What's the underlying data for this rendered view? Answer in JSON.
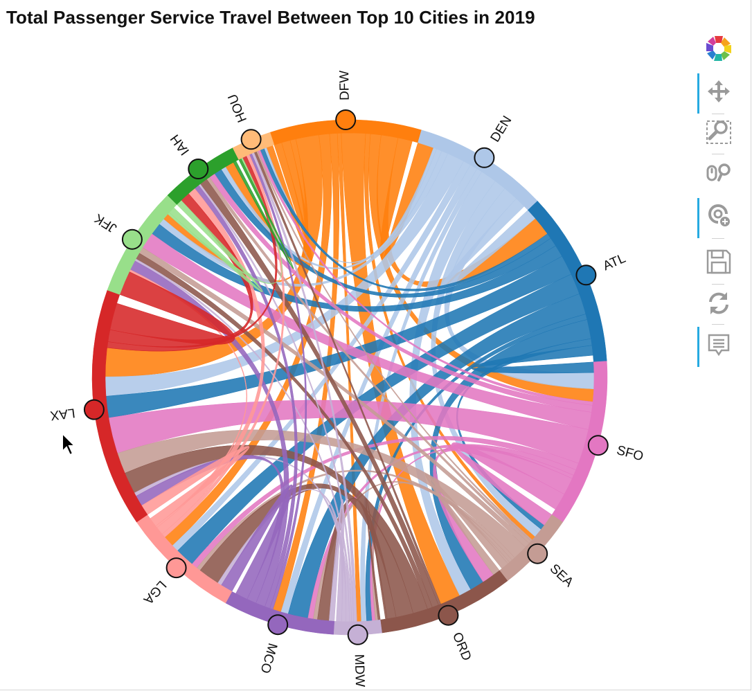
{
  "chart_data": {
    "type": "chord",
    "title": "Total Passenger Service Travel Between Top 10 Cities in 2019",
    "nodes": [
      {
        "name": "DFW",
        "color": "#ff7f0e",
        "share": 0.095
      },
      {
        "name": "DEN",
        "color": "#aec7e8",
        "share": 0.085
      },
      {
        "name": "ATL",
        "color": "#1f77b4",
        "share": 0.11
      },
      {
        "name": "SFO",
        "color": "#e377c2",
        "share": 0.105
      },
      {
        "name": "SEA",
        "color": "#c49c94",
        "share": 0.05
      },
      {
        "name": "ORD",
        "color": "#8c564b",
        "share": 0.085
      },
      {
        "name": "MDW",
        "color": "#c5b0d5",
        "share": 0.03
      },
      {
        "name": "MCO",
        "color": "#9467bd",
        "share": 0.07
      },
      {
        "name": "LGA",
        "color": "#ff9896",
        "share": 0.075
      },
      {
        "name": "LAX",
        "color": "#d62728",
        "share": 0.15
      },
      {
        "name": "JFK",
        "color": "#98df8a",
        "share": 0.07
      },
      {
        "name": "IAH",
        "color": "#2ca02c",
        "share": 0.05
      },
      {
        "name": "HOU",
        "color": "#ffbb78",
        "share": 0.025
      }
    ],
    "links": [
      [
        "DFW",
        "DEN",
        3.0
      ],
      [
        "DFW",
        "ATL",
        3.5
      ],
      [
        "DFW",
        "SFO",
        2.2
      ],
      [
        "DFW",
        "SEA",
        1.0
      ],
      [
        "DFW",
        "ORD",
        5.0
      ],
      [
        "DFW",
        "MDW",
        0.8
      ],
      [
        "DFW",
        "MCO",
        1.6
      ],
      [
        "DFW",
        "LGA",
        2.2
      ],
      [
        "DFW",
        "LAX",
        4.8
      ],
      [
        "DFW",
        "JFK",
        1.2
      ],
      [
        "DFW",
        "IAH",
        1.8
      ],
      [
        "DFW",
        "HOU",
        1.6
      ],
      [
        "DEN",
        "ATL",
        2.0
      ],
      [
        "DEN",
        "SFO",
        2.8
      ],
      [
        "DEN",
        "SEA",
        2.2
      ],
      [
        "DEN",
        "ORD",
        3.0
      ],
      [
        "DEN",
        "MDW",
        1.0
      ],
      [
        "DEN",
        "MCO",
        1.4
      ],
      [
        "DEN",
        "LGA",
        1.4
      ],
      [
        "DEN",
        "LAX",
        3.2
      ],
      [
        "DEN",
        "JFK",
        1.2
      ],
      [
        "DEN",
        "IAH",
        1.0
      ],
      [
        "DEN",
        "HOU",
        0.6
      ],
      [
        "ATL",
        "SFO",
        1.8
      ],
      [
        "ATL",
        "SEA",
        1.2
      ],
      [
        "ATL",
        "ORD",
        3.5
      ],
      [
        "ATL",
        "MDW",
        1.0
      ],
      [
        "ATL",
        "MCO",
        3.8
      ],
      [
        "ATL",
        "LGA",
        3.8
      ],
      [
        "ATL",
        "LAX",
        3.6
      ],
      [
        "ATL",
        "JFK",
        2.2
      ],
      [
        "ATL",
        "IAH",
        1.6
      ],
      [
        "ATL",
        "HOU",
        1.0
      ],
      [
        "SFO",
        "SEA",
        3.0
      ],
      [
        "SFO",
        "ORD",
        3.0
      ],
      [
        "SFO",
        "MDW",
        0.6
      ],
      [
        "SFO",
        "MCO",
        1.0
      ],
      [
        "SFO",
        "LGA",
        1.2
      ],
      [
        "SFO",
        "LAX",
        6.0
      ],
      [
        "SFO",
        "JFK",
        3.0
      ],
      [
        "SFO",
        "IAH",
        1.2
      ],
      [
        "SFO",
        "HOU",
        0.6
      ],
      [
        "SEA",
        "ORD",
        1.8
      ],
      [
        "SEA",
        "MDW",
        0.5
      ],
      [
        "SEA",
        "MCO",
        0.8
      ],
      [
        "SEA",
        "LGA",
        0.8
      ],
      [
        "SEA",
        "LAX",
        3.5
      ],
      [
        "SEA",
        "JFK",
        1.2
      ],
      [
        "SEA",
        "IAH",
        0.7
      ],
      [
        "SEA",
        "HOU",
        0.4
      ],
      [
        "ORD",
        "MDW",
        0.4
      ],
      [
        "ORD",
        "MCO",
        2.2
      ],
      [
        "ORD",
        "LGA",
        4.2
      ],
      [
        "ORD",
        "LAX",
        3.6
      ],
      [
        "ORD",
        "JFK",
        1.2
      ],
      [
        "ORD",
        "IAH",
        1.6
      ],
      [
        "ORD",
        "HOU",
        0.6
      ],
      [
        "MDW",
        "MCO",
        1.0
      ],
      [
        "MDW",
        "LGA",
        0.8
      ],
      [
        "MDW",
        "LAX",
        0.6
      ],
      [
        "MDW",
        "JFK",
        0.4
      ],
      [
        "MDW",
        "IAH",
        0.4
      ],
      [
        "MDW",
        "HOU",
        0.6
      ],
      [
        "MCO",
        "LGA",
        2.4
      ],
      [
        "MCO",
        "LAX",
        1.8
      ],
      [
        "MCO",
        "JFK",
        1.8
      ],
      [
        "MCO",
        "IAH",
        1.0
      ],
      [
        "MCO",
        "HOU",
        0.6
      ],
      [
        "LGA",
        "LAX",
        1.8
      ],
      [
        "LGA",
        "JFK",
        0.4
      ],
      [
        "LGA",
        "IAH",
        1.6
      ],
      [
        "LGA",
        "HOU",
        0.8
      ],
      [
        "LAX",
        "JFK",
        4.5
      ],
      [
        "LAX",
        "IAH",
        2.0
      ],
      [
        "LAX",
        "HOU",
        1.0
      ],
      [
        "JFK",
        "IAH",
        1.2
      ],
      [
        "JFK",
        "HOU",
        0.4
      ],
      [
        "IAH",
        "HOU",
        0.6
      ]
    ]
  },
  "toolbar": {
    "tools": [
      {
        "name": "bokeh-logo",
        "icon": "bokeh-logo-icon",
        "active": false
      },
      {
        "name": "pan-tool",
        "icon": "pan-icon",
        "active": true
      },
      {
        "name": "box-zoom-tool",
        "icon": "box-zoom-icon",
        "active": false
      },
      {
        "name": "wheel-zoom-tool",
        "icon": "wheel-zoom-icon",
        "active": false
      },
      {
        "name": "tap-tool",
        "icon": "tap-icon",
        "active": true
      },
      {
        "name": "save-tool",
        "icon": "save-icon",
        "active": false
      },
      {
        "name": "reset-tool",
        "icon": "reset-icon",
        "active": false
      },
      {
        "name": "hover-tool",
        "icon": "hover-icon",
        "active": true
      }
    ]
  }
}
